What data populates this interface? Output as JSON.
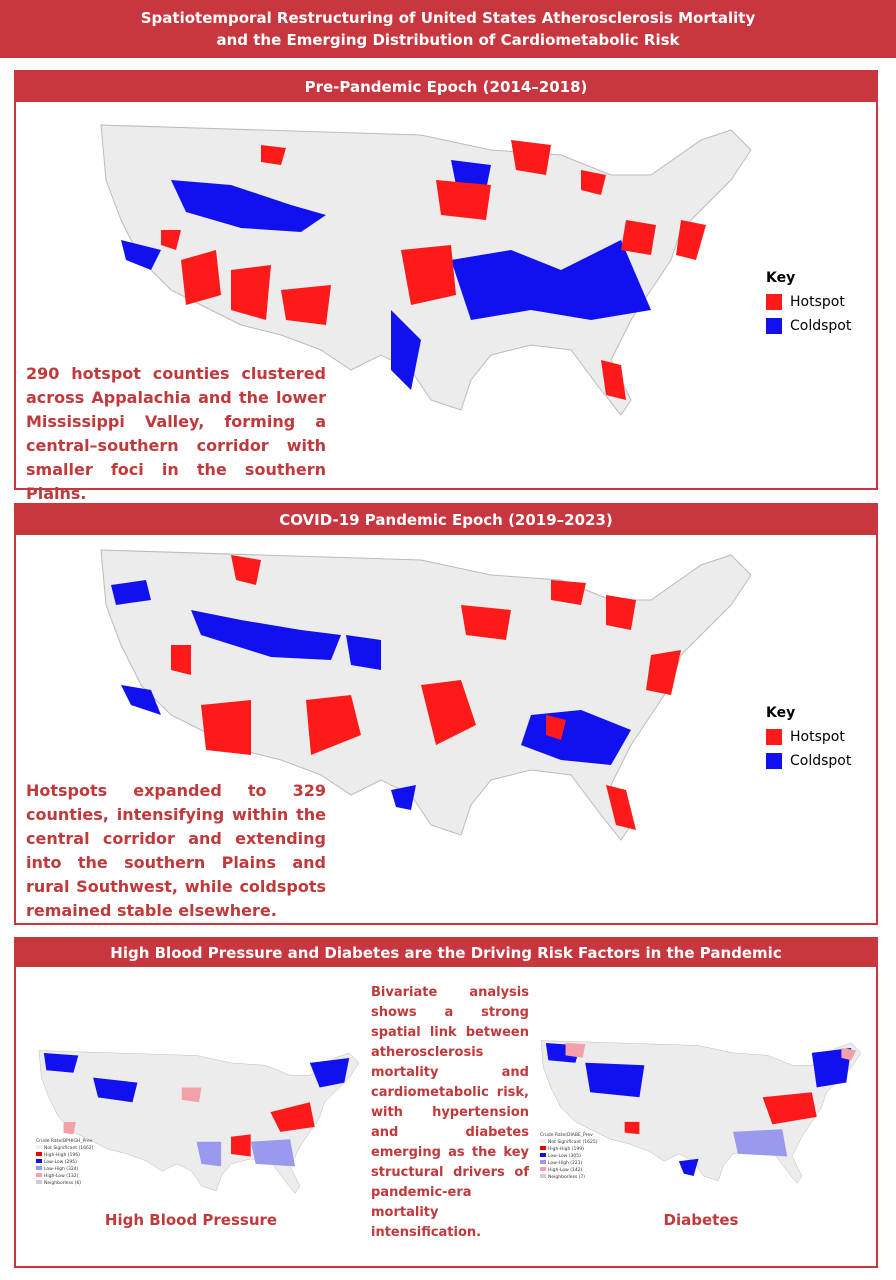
{
  "header": {
    "title": "Spatiotemporal Restructuring of United States Atherosclerosis Mortality and the Emerging Distribution of  Cardiometabolic Risk"
  },
  "panels": [
    {
      "title": "Pre-Pandemic Epoch (2014–2018)",
      "summary": "290 hotspot counties clustered across Appalachia and the lower Mississippi Valley, forming a central–southern corridor with smaller foci in the southern Plains.",
      "key": {
        "title": "Key",
        "items": [
          "Hotspot",
          "Coldspot"
        ]
      }
    },
    {
      "title": "COVID-19 Pandemic Epoch (2019–2023)",
      "summary": "Hotspots expanded to 329 counties, intensifying within the central corridor and extending into the southern Plains and rural Southwest, while coldspots remained stable elsewhere.",
      "key": {
        "title": "Key",
        "items": [
          "Hotspot",
          "Coldspot"
        ]
      }
    }
  ],
  "risk": {
    "title": "High Blood Pressure and Diabetes are the Driving Risk Factors in the Pandemic",
    "text": "Bivariate analysis shows a strong spatial link between atherosclerosis mortality and cardiometabolic risk, with hypertension and diabetes emerging as the key structural drivers of pandemic-era mortality intensification.",
    "maps": [
      {
        "caption": "High Blood Pressure",
        "legend_title": "Crude Rate(BPHIGH_Prev",
        "legend_items": [
          "Not Significant (1662)",
          "High-High (196)",
          "Low-Low (295)",
          "Low-High (324)",
          "High-Low (132)",
          "Neighborless (6)"
        ]
      },
      {
        "caption": "Diabetes",
        "legend_title": "Crude Rate(DIABE_Prev",
        "legend_items": [
          "Not Significant (1625)",
          "High-High (199)",
          "Low-Low (305)",
          "Low-High (221)",
          "High-Low (142)",
          "Neighborless (7)"
        ]
      }
    ]
  }
}
